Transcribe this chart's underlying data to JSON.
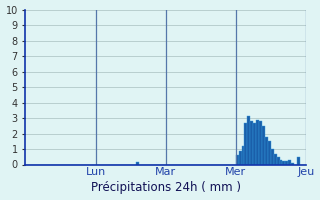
{
  "xlabel": "Précipitations 24h ( mm )",
  "ylim": [
    0,
    10
  ],
  "yticks": [
    0,
    1,
    2,
    3,
    4,
    5,
    6,
    7,
    8,
    9,
    10
  ],
  "background_color": "#e0f4f4",
  "bar_color": "#1a5faa",
  "bar_edgecolor": "#3399dd",
  "grid_color": "#b8cece",
  "n_bars": 96,
  "day_labels": [
    "Lun",
    "Mar",
    "Mer",
    "Jeu"
  ],
  "day_positions": [
    24,
    48,
    72,
    96
  ],
  "bar_values": [
    0,
    0,
    0,
    0,
    0,
    0,
    0,
    0,
    0,
    0,
    0,
    0,
    0,
    0,
    0,
    0,
    0,
    0,
    0,
    0,
    0,
    0,
    0,
    0,
    0,
    0,
    0,
    0,
    0,
    0,
    0,
    0,
    0,
    0,
    0,
    0,
    0,
    0,
    0.15,
    0,
    0,
    0,
    0,
    0,
    0,
    0,
    0,
    0,
    0,
    0,
    0,
    0,
    0,
    0,
    0,
    0,
    0,
    0,
    0,
    0,
    0,
    0,
    0,
    0,
    0,
    0,
    0,
    0,
    0,
    0,
    0,
    0,
    0.6,
    0.9,
    1.2,
    2.7,
    3.1,
    2.8,
    2.7,
    2.9,
    2.8,
    2.5,
    1.8,
    1.5,
    1.0,
    0.7,
    0.5,
    0.3,
    0.2,
    0.2,
    0.3,
    0.1,
    0,
    0.5,
    0,
    0
  ]
}
